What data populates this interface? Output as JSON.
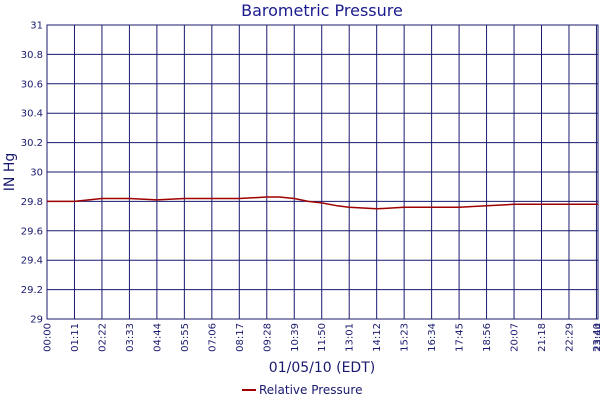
{
  "chart_data": {
    "type": "line",
    "title": "Barometric Pressure",
    "xlabel": "01/05/10 (EDT)",
    "ylabel": "IN Hg",
    "ylim": [
      29,
      31
    ],
    "yticks": [
      "29",
      "29.2",
      "29.4",
      "29.6",
      "29.8",
      "30",
      "30.2",
      "30.4",
      "30.6",
      "30.8",
      "31"
    ],
    "xticks": [
      "00:00",
      "01:11",
      "02:22",
      "03:33",
      "04:44",
      "05:55",
      "07:06",
      "08:17",
      "09:28",
      "10:39",
      "11:50",
      "13:01",
      "14:12",
      "15:23",
      "16:34",
      "17:45",
      "18:56",
      "20:07",
      "21:18",
      "22:29",
      "23:40",
      "23:44"
    ],
    "grid": true,
    "legend": "bottom",
    "colors": {
      "series": "#a00000",
      "grid": "#1a1a6e",
      "text": "#1a1a6e",
      "title": "#1a1a8e"
    },
    "series": [
      {
        "name": "Relative Pressure",
        "x": [
          "00:00",
          "01:11",
          "02:22",
          "03:33",
          "04:44",
          "05:55",
          "07:06",
          "08:17",
          "09:28",
          "10:00",
          "10:39",
          "11:15",
          "11:50",
          "12:30",
          "13:01",
          "14:12",
          "15:23",
          "16:34",
          "17:45",
          "18:56",
          "20:07",
          "21:18",
          "22:29",
          "23:44"
        ],
        "values": [
          29.8,
          29.8,
          29.82,
          29.82,
          29.81,
          29.82,
          29.82,
          29.82,
          29.83,
          29.83,
          29.82,
          29.8,
          29.79,
          29.77,
          29.76,
          29.75,
          29.76,
          29.76,
          29.76,
          29.77,
          29.78,
          29.78,
          29.78,
          29.78
        ]
      }
    ]
  }
}
